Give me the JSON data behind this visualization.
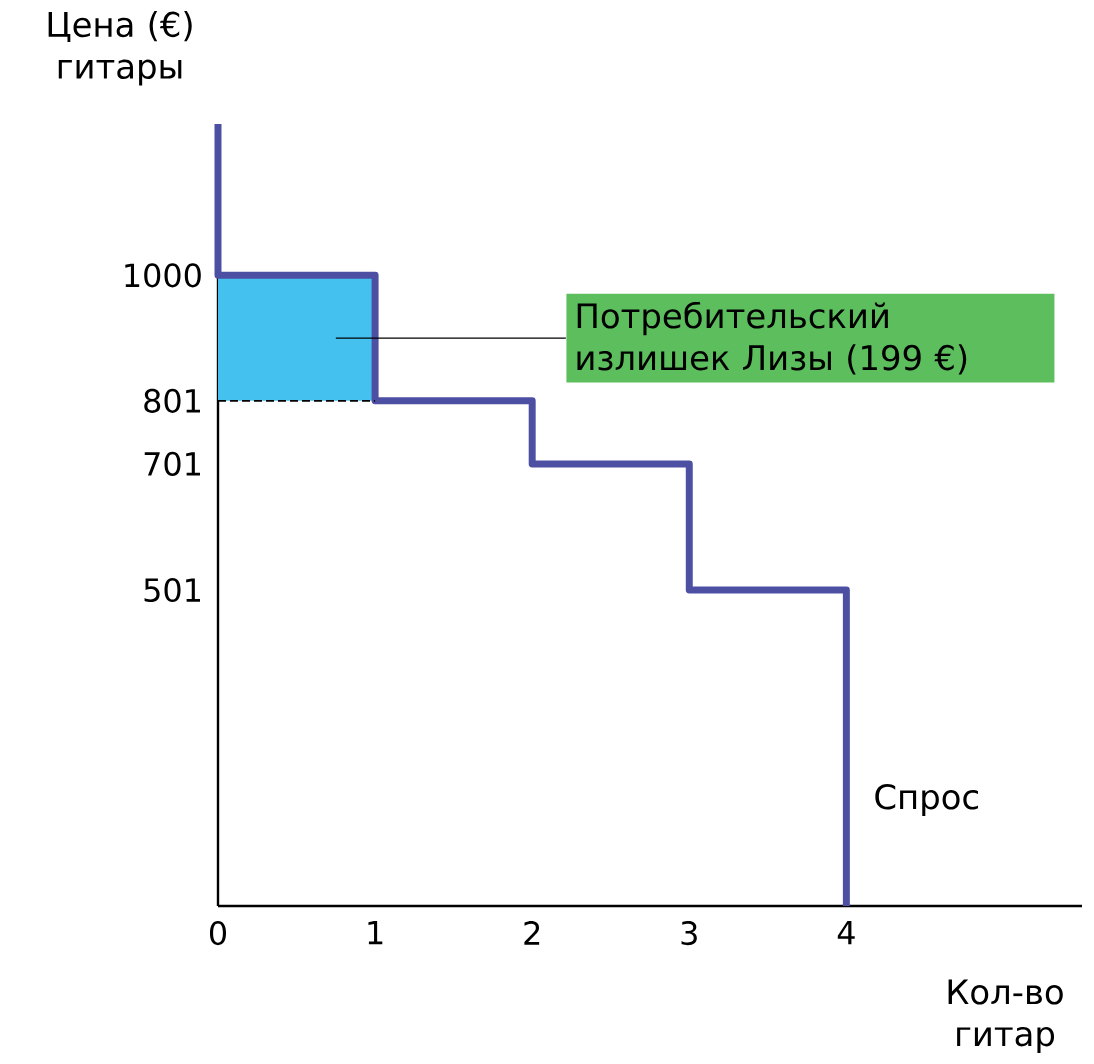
{
  "chart_data": {
    "type": "line",
    "ylabel": "Цена (€) гитары",
    "xlabel": "Кол-во гитар",
    "xlim": [
      0,
      5.5
    ],
    "ylim": [
      0,
      1240
    ],
    "xticks": [
      0,
      1,
      2,
      3,
      4
    ],
    "yticks": [
      501,
      701,
      801,
      1000
    ],
    "grid": false,
    "series": [
      {
        "name": "Спрос",
        "color": "#4d4fa3",
        "x": [
          0,
          0,
          1,
          1,
          2,
          2,
          3,
          3,
          4,
          4
        ],
        "values": [
          1240,
          1000,
          1000,
          801,
          801,
          701,
          701,
          501,
          501,
          0
        ]
      },
      {
        "type": "bar",
        "color": "#45c1f0",
        "x": [
          0.5
        ],
        "values": [
          199
        ],
        "base": [
          801
        ]
      },
      {
        "type": "line",
        "color": "#000000",
        "line_style": "dashed",
        "x": [
          0,
          1
        ],
        "values": [
          801,
          801
        ]
      }
    ],
    "annotations": [
      "Потребительский излишек Лизы (199 €)"
    ]
  }
}
